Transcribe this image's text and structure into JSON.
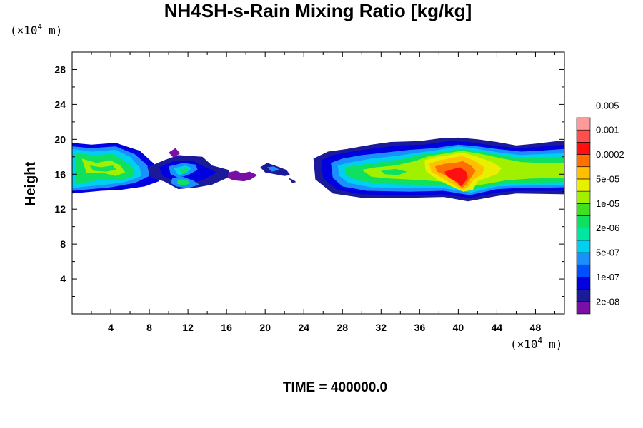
{
  "chart_data": {
    "type": "heatmap",
    "title": "NH4SH-s-Rain Mixing Ratio [kg/kg]",
    "ylabel": "Height",
    "x_unit_label": [
      "(×10",
      "4",
      "m)"
    ],
    "y_unit_label": [
      "(×10",
      "4",
      "m)"
    ],
    "xlim": [
      0,
      51
    ],
    "ylim": [
      0,
      30
    ],
    "x_ticks": [
      4,
      8,
      12,
      16,
      20,
      24,
      28,
      32,
      36,
      40,
      44,
      48
    ],
    "y_ticks": [
      4,
      8,
      12,
      16,
      20,
      24,
      28
    ],
    "colorbar": {
      "colors": [
        "#7a0fa8",
        "#1a1a9a",
        "#0000e0",
        "#0050ff",
        "#1a90ff",
        "#00d0f0",
        "#00e8a0",
        "#10e060",
        "#40e020",
        "#a0f000",
        "#e8f000",
        "#ffc000",
        "#ff7000",
        "#ff1010",
        "#ff5050",
        "#ff9a9a"
      ],
      "labels": [
        "2e-08",
        "1e-07",
        "5e-07",
        "2e-06",
        "1e-05",
        "5e-05",
        "0.0002",
        "0.001",
        "0.005"
      ]
    },
    "time_label": "TIME = 400000.0"
  }
}
